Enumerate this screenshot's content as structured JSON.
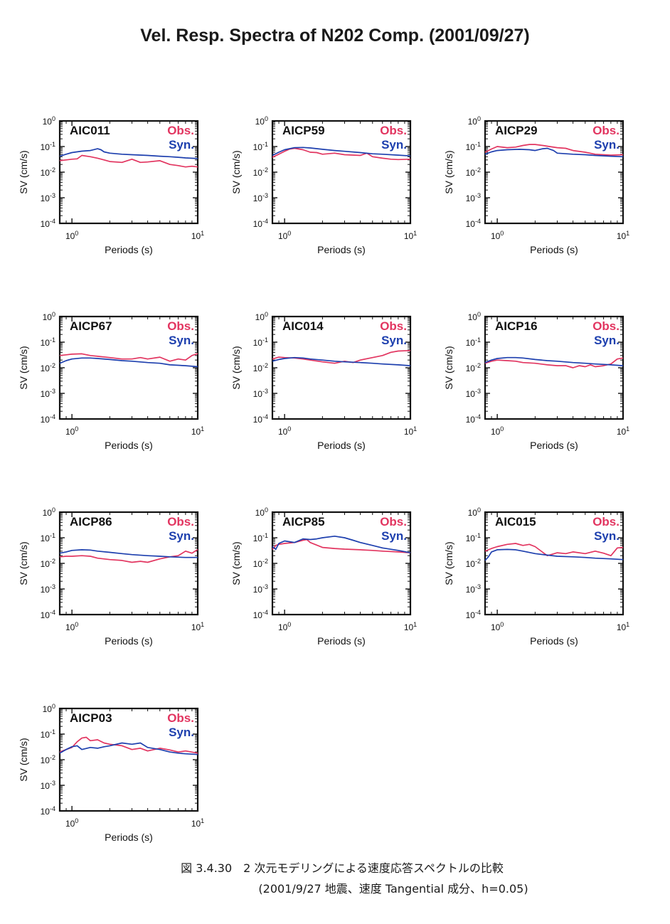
{
  "page": {
    "title": "Vel. Resp. Spectra of N202 Comp. (2001/09/27)",
    "caption_line1": "図 3.4.30　2 次元モデリングによる速度応答スペクトルの比較",
    "caption_line2": "(2001/9/27 地震、速度 Tangential 成分、h=0.05)"
  },
  "colors": {
    "obs": "#e23560",
    "syn": "#1d3fae",
    "axis": "#111111"
  },
  "legend": {
    "obs": "Obs.",
    "syn": "Syn."
  },
  "chart_data": [
    {
      "type": "line",
      "station": "AIC011",
      "xlabel": "Periods (s)",
      "ylabel": "SV (cm/s)",
      "xscale": "log",
      "yscale": "log",
      "xlim": [
        0.8,
        10
      ],
      "ylim": [
        0.0001,
        1
      ],
      "xticks": [
        "10^0",
        "10^1"
      ],
      "yticks": [
        "10^0",
        "10^-1",
        "10^-2",
        "10^-3",
        "10^-4"
      ],
      "series": [
        {
          "name": "Obs.",
          "x": [
            0.8,
            0.9,
            1.0,
            1.1,
            1.2,
            1.4,
            1.6,
            1.8,
            2.0,
            2.5,
            3.0,
            3.5,
            4.0,
            5.0,
            6.0,
            7.0,
            8.0,
            9.0,
            10.0
          ],
          "y": [
            0.028,
            0.03,
            0.032,
            0.033,
            0.045,
            0.04,
            0.035,
            0.03,
            0.026,
            0.024,
            0.032,
            0.024,
            0.025,
            0.028,
            0.02,
            0.018,
            0.016,
            0.017,
            0.016
          ]
        },
        {
          "name": "Syn.",
          "x": [
            0.8,
            0.9,
            1.0,
            1.2,
            1.4,
            1.6,
            1.7,
            1.8,
            2.0,
            2.5,
            3.0,
            4.0,
            5.0,
            6.0,
            7.0,
            8.0,
            10.0
          ],
          "y": [
            0.042,
            0.05,
            0.058,
            0.066,
            0.07,
            0.082,
            0.075,
            0.062,
            0.055,
            0.05,
            0.048,
            0.045,
            0.042,
            0.04,
            0.038,
            0.036,
            0.034
          ]
        }
      ]
    },
    {
      "type": "line",
      "station": "AICP59",
      "xlabel": "Periods (s)",
      "ylabel": "SV (cm/s)",
      "xscale": "log",
      "yscale": "log",
      "xlim": [
        0.8,
        10
      ],
      "ylim": [
        0.0001,
        1
      ],
      "xticks": [
        "10^0",
        "10^1"
      ],
      "yticks": [
        "10^0",
        "10^-1",
        "10^-2",
        "10^-3",
        "10^-4"
      ],
      "series": [
        {
          "name": "Obs.",
          "x": [
            0.8,
            0.9,
            1.0,
            1.1,
            1.2,
            1.4,
            1.6,
            1.8,
            2.0,
            2.5,
            3.0,
            4.0,
            4.5,
            5.0,
            6.0,
            7.0,
            8.0,
            10.0
          ],
          "y": [
            0.038,
            0.05,
            0.065,
            0.08,
            0.085,
            0.075,
            0.06,
            0.058,
            0.05,
            0.055,
            0.048,
            0.045,
            0.055,
            0.04,
            0.035,
            0.032,
            0.031,
            0.032
          ]
        },
        {
          "name": "Syn.",
          "x": [
            0.8,
            0.9,
            1.0,
            1.2,
            1.4,
            1.6,
            2.0,
            2.5,
            3.0,
            4.0,
            5.0,
            6.0,
            8.0,
            10.0
          ],
          "y": [
            0.045,
            0.06,
            0.075,
            0.09,
            0.092,
            0.088,
            0.078,
            0.07,
            0.065,
            0.058,
            0.052,
            0.05,
            0.046,
            0.043
          ]
        }
      ]
    },
    {
      "type": "line",
      "station": "AICP29",
      "xlabel": "Periods (s)",
      "ylabel": "SV (cm/s)",
      "xscale": "log",
      "yscale": "log",
      "xlim": [
        0.8,
        10
      ],
      "ylim": [
        0.0001,
        1
      ],
      "xticks": [
        "10^0",
        "10^1"
      ],
      "yticks": [
        "10^0",
        "10^-1",
        "10^-2",
        "10^-3",
        "10^-4"
      ],
      "series": [
        {
          "name": "Obs.",
          "x": [
            0.8,
            0.9,
            1.0,
            1.2,
            1.4,
            1.6,
            1.8,
            2.0,
            2.3,
            2.6,
            3.0,
            3.5,
            4.0,
            5.0,
            6.0,
            8.0,
            10.0
          ],
          "y": [
            0.06,
            0.08,
            0.1,
            0.09,
            0.095,
            0.11,
            0.12,
            0.12,
            0.11,
            0.1,
            0.09,
            0.085,
            0.07,
            0.06,
            0.05,
            0.046,
            0.048
          ]
        },
        {
          "name": "Syn.",
          "x": [
            0.8,
            0.9,
            1.0,
            1.2,
            1.5,
            1.8,
            2.0,
            2.3,
            2.5,
            2.8,
            3.0,
            4.0,
            5.0,
            6.0,
            8.0,
            10.0
          ],
          "y": [
            0.05,
            0.062,
            0.07,
            0.075,
            0.078,
            0.075,
            0.07,
            0.082,
            0.085,
            0.07,
            0.055,
            0.05,
            0.048,
            0.045,
            0.042,
            0.04
          ]
        }
      ]
    },
    {
      "type": "line",
      "station": "AICP67",
      "xlabel": "Periods (s)",
      "ylabel": "SV (cm/s)",
      "xscale": "log",
      "yscale": "log",
      "xlim": [
        0.8,
        10
      ],
      "ylim": [
        0.0001,
        1
      ],
      "xticks": [
        "10^0",
        "10^1"
      ],
      "yticks": [
        "10^0",
        "10^-1",
        "10^-2",
        "10^-3",
        "10^-4"
      ],
      "series": [
        {
          "name": "Obs.",
          "x": [
            0.8,
            0.9,
            1.0,
            1.2,
            1.4,
            1.6,
            2.0,
            2.5,
            3.0,
            3.5,
            4.0,
            5.0,
            6.0,
            7.0,
            8.0,
            9.0,
            10.0
          ],
          "y": [
            0.03,
            0.032,
            0.034,
            0.035,
            0.03,
            0.028,
            0.025,
            0.022,
            0.022,
            0.025,
            0.022,
            0.026,
            0.018,
            0.022,
            0.02,
            0.03,
            0.036
          ]
        },
        {
          "name": "Syn.",
          "x": [
            0.8,
            0.9,
            1.0,
            1.2,
            1.4,
            1.6,
            2.0,
            2.5,
            3.0,
            4.0,
            5.0,
            6.0,
            8.0,
            10.0
          ],
          "y": [
            0.015,
            0.019,
            0.022,
            0.024,
            0.024,
            0.023,
            0.021,
            0.019,
            0.018,
            0.016,
            0.015,
            0.013,
            0.012,
            0.011
          ]
        }
      ]
    },
    {
      "type": "line",
      "station": "AIC014",
      "xlabel": "Periods (s)",
      "ylabel": "SV (cm/s)",
      "xscale": "log",
      "yscale": "log",
      "xlim": [
        0.8,
        10
      ],
      "ylim": [
        0.0001,
        1
      ],
      "xticks": [
        "10^0",
        "10^1"
      ],
      "yticks": [
        "10^0",
        "10^-1",
        "10^-2",
        "10^-3",
        "10^-4"
      ],
      "series": [
        {
          "name": "Obs.",
          "x": [
            0.8,
            0.9,
            1.0,
            1.2,
            1.4,
            1.6,
            2.0,
            2.5,
            3.0,
            3.5,
            4.0,
            5.0,
            6.0,
            7.0,
            8.0,
            10.0
          ],
          "y": [
            0.022,
            0.026,
            0.025,
            0.024,
            0.022,
            0.02,
            0.017,
            0.015,
            0.018,
            0.016,
            0.02,
            0.025,
            0.03,
            0.04,
            0.045,
            0.047
          ]
        },
        {
          "name": "Syn.",
          "x": [
            0.8,
            0.9,
            1.0,
            1.2,
            1.4,
            1.6,
            2.0,
            2.5,
            3.0,
            4.0,
            5.0,
            6.0,
            8.0,
            10.0
          ],
          "y": [
            0.018,
            0.021,
            0.023,
            0.025,
            0.024,
            0.022,
            0.02,
            0.018,
            0.017,
            0.016,
            0.015,
            0.014,
            0.013,
            0.012
          ]
        }
      ]
    },
    {
      "type": "line",
      "station": "AICP16",
      "xlabel": "Periods (s)",
      "ylabel": "SV (cm/s)",
      "xscale": "log",
      "yscale": "log",
      "xlim": [
        0.8,
        10
      ],
      "ylim": [
        0.0001,
        1
      ],
      "xticks": [
        "10^0",
        "10^1"
      ],
      "yticks": [
        "10^0",
        "10^-1",
        "10^-2",
        "10^-3",
        "10^-4"
      ],
      "series": [
        {
          "name": "Obs.",
          "x": [
            0.8,
            0.9,
            1.0,
            1.2,
            1.4,
            1.6,
            2.0,
            2.5,
            3.0,
            3.5,
            4.0,
            4.5,
            5.0,
            5.5,
            6.0,
            7.0,
            8.0,
            9.0,
            10.0
          ],
          "y": [
            0.015,
            0.018,
            0.02,
            0.019,
            0.018,
            0.016,
            0.015,
            0.013,
            0.012,
            0.012,
            0.01,
            0.012,
            0.011,
            0.013,
            0.011,
            0.012,
            0.014,
            0.022,
            0.024
          ]
        },
        {
          "name": "Syn.",
          "x": [
            0.8,
            0.9,
            1.0,
            1.2,
            1.4,
            1.6,
            2.0,
            2.5,
            3.0,
            4.0,
            5.0,
            6.0,
            8.0,
            10.0
          ],
          "y": [
            0.016,
            0.02,
            0.023,
            0.025,
            0.025,
            0.024,
            0.021,
            0.019,
            0.018,
            0.016,
            0.015,
            0.014,
            0.013,
            0.012
          ]
        }
      ]
    },
    {
      "type": "line",
      "station": "AICP86",
      "xlabel": "Periods (s)",
      "ylabel": "SV (cm/s)",
      "xscale": "log",
      "yscale": "log",
      "xlim": [
        0.8,
        10
      ],
      "ylim": [
        0.0001,
        1
      ],
      "xticks": [
        "10^0",
        "10^1"
      ],
      "yticks": [
        "10^0",
        "10^-1",
        "10^-2",
        "10^-3",
        "10^-4"
      ],
      "series": [
        {
          "name": "Obs.",
          "x": [
            0.8,
            0.9,
            1.0,
            1.2,
            1.4,
            1.6,
            2.0,
            2.5,
            3.0,
            3.5,
            4.0,
            5.0,
            6.0,
            7.0,
            8.0,
            9.0,
            10.0
          ],
          "y": [
            0.018,
            0.019,
            0.019,
            0.02,
            0.019,
            0.016,
            0.014,
            0.013,
            0.011,
            0.012,
            0.011,
            0.015,
            0.018,
            0.02,
            0.03,
            0.025,
            0.035
          ]
        },
        {
          "name": "Syn.",
          "x": [
            0.8,
            0.9,
            1.0,
            1.2,
            1.4,
            1.6,
            2.0,
            2.5,
            3.0,
            4.0,
            5.0,
            6.0,
            8.0,
            10.0
          ],
          "y": [
            0.025,
            0.028,
            0.032,
            0.034,
            0.033,
            0.03,
            0.027,
            0.024,
            0.022,
            0.02,
            0.019,
            0.018,
            0.017,
            0.017
          ]
        }
      ]
    },
    {
      "type": "line",
      "station": "AICP85",
      "xlabel": "Periods (s)",
      "ylabel": "SV (cm/s)",
      "xscale": "log",
      "yscale": "log",
      "xlim": [
        0.8,
        10
      ],
      "ylim": [
        0.0001,
        1
      ],
      "xticks": [
        "10^0",
        "10^1"
      ],
      "yticks": [
        "10^0",
        "10^-1",
        "10^-2",
        "10^-3",
        "10^-4"
      ],
      "series": [
        {
          "name": "Obs.",
          "x": [
            0.8,
            0.85,
            0.9,
            1.0,
            1.2,
            1.4,
            1.5,
            1.6,
            2.0,
            2.5,
            3.0,
            4.0,
            5.0,
            6.0,
            8.0,
            10.0
          ],
          "y": [
            0.035,
            0.05,
            0.055,
            0.06,
            0.065,
            0.08,
            0.085,
            0.065,
            0.042,
            0.038,
            0.036,
            0.034,
            0.032,
            0.03,
            0.028,
            0.026
          ]
        },
        {
          "name": "Syn.",
          "x": [
            0.8,
            0.85,
            0.9,
            1.0,
            1.1,
            1.2,
            1.4,
            1.6,
            1.8,
            2.0,
            2.5,
            3.0,
            3.5,
            4.0,
            5.0,
            6.0,
            8.0,
            10.0
          ],
          "y": [
            0.045,
            0.035,
            0.06,
            0.075,
            0.07,
            0.065,
            0.09,
            0.085,
            0.09,
            0.1,
            0.115,
            0.1,
            0.08,
            0.065,
            0.05,
            0.04,
            0.032,
            0.026
          ]
        }
      ]
    },
    {
      "type": "line",
      "station": "AIC015",
      "xlabel": "Periods (s)",
      "ylabel": "SV (cm/s)",
      "xscale": "log",
      "yscale": "log",
      "xlim": [
        0.8,
        10
      ],
      "ylim": [
        0.0001,
        1
      ],
      "xticks": [
        "10^0",
        "10^1"
      ],
      "yticks": [
        "10^0",
        "10^-1",
        "10^-2",
        "10^-3",
        "10^-4"
      ],
      "series": [
        {
          "name": "Obs.",
          "x": [
            0.8,
            0.9,
            1.0,
            1.2,
            1.4,
            1.6,
            1.8,
            2.0,
            2.5,
            3.0,
            3.5,
            4.0,
            5.0,
            6.0,
            7.0,
            8.0,
            9.0,
            10.0
          ],
          "y": [
            0.03,
            0.038,
            0.045,
            0.055,
            0.06,
            0.05,
            0.055,
            0.045,
            0.02,
            0.026,
            0.024,
            0.028,
            0.024,
            0.03,
            0.025,
            0.02,
            0.04,
            0.042
          ]
        },
        {
          "name": "Syn.",
          "x": [
            0.8,
            0.85,
            0.9,
            1.0,
            1.2,
            1.4,
            1.6,
            2.0,
            2.5,
            3.0,
            4.0,
            5.0,
            6.0,
            8.0,
            10.0
          ],
          "y": [
            0.013,
            0.018,
            0.028,
            0.034,
            0.035,
            0.034,
            0.03,
            0.024,
            0.021,
            0.019,
            0.018,
            0.017,
            0.016,
            0.015,
            0.014
          ]
        }
      ]
    },
    {
      "type": "line",
      "station": "AICP03",
      "xlabel": "Periods (s)",
      "ylabel": "SV (cm/s)",
      "xscale": "log",
      "yscale": "log",
      "xlim": [
        0.8,
        10
      ],
      "ylim": [
        0.0001,
        1
      ],
      "xticks": [
        "10^0",
        "10^1"
      ],
      "yticks": [
        "10^0",
        "10^-1",
        "10^-2",
        "10^-3",
        "10^-4"
      ],
      "series": [
        {
          "name": "Obs.",
          "x": [
            0.8,
            0.9,
            1.0,
            1.1,
            1.2,
            1.3,
            1.4,
            1.6,
            1.8,
            2.0,
            2.5,
            3.0,
            3.5,
            4.0,
            5.0,
            6.0,
            7.0,
            8.0,
            10.0
          ],
          "y": [
            0.02,
            0.025,
            0.03,
            0.05,
            0.07,
            0.075,
            0.055,
            0.06,
            0.045,
            0.04,
            0.035,
            0.025,
            0.028,
            0.022,
            0.028,
            0.024,
            0.02,
            0.022,
            0.018
          ]
        },
        {
          "name": "Syn.",
          "x": [
            0.8,
            0.9,
            1.0,
            1.1,
            1.2,
            1.4,
            1.6,
            1.8,
            2.0,
            2.5,
            3.0,
            3.5,
            4.0,
            5.0,
            6.0,
            7.0,
            8.0,
            10.0
          ],
          "y": [
            0.018,
            0.025,
            0.032,
            0.035,
            0.025,
            0.03,
            0.028,
            0.032,
            0.035,
            0.045,
            0.04,
            0.045,
            0.03,
            0.025,
            0.02,
            0.018,
            0.017,
            0.016
          ]
        }
      ]
    }
  ]
}
